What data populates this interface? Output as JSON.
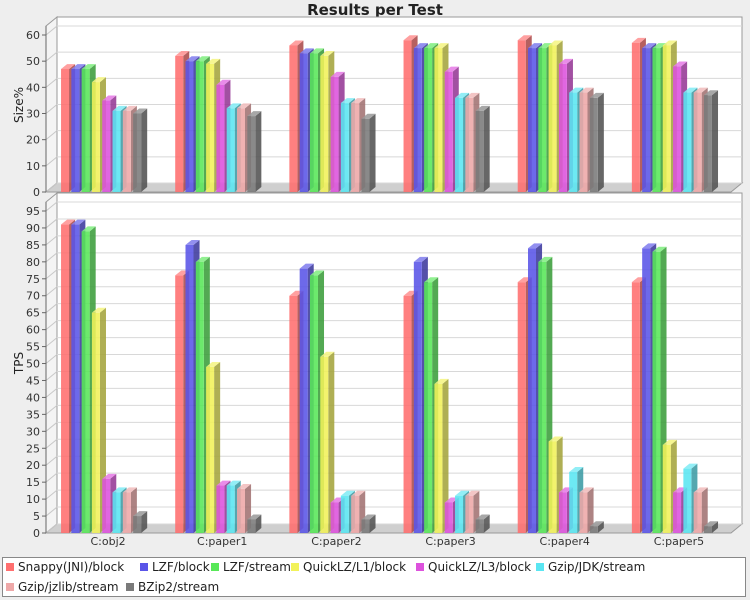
{
  "chart_data": [
    {
      "type": "bar",
      "title": "Results per Test",
      "ylabel": "Size%",
      "ylim": [
        0,
        60
      ],
      "yticks": [
        0,
        10,
        20,
        30,
        40,
        50,
        60
      ],
      "categories": [
        "C:obj2",
        "C:paper1",
        "C:paper2",
        "C:paper3",
        "C:paper4",
        "C:paper5"
      ],
      "series": [
        {
          "name": "Snappy(JNI)/block",
          "color": "#ff6f6f",
          "values": [
            47,
            52,
            56,
            58,
            58,
            57
          ]
        },
        {
          "name": "LZF/block",
          "color": "#5a55e8",
          "values": [
            47,
            50,
            53,
            55,
            55,
            55
          ]
        },
        {
          "name": "LZF/stream",
          "color": "#58e858",
          "values": [
            47,
            50,
            53,
            55,
            55,
            55
          ]
        },
        {
          "name": "QuickLZ/L1/block",
          "color": "#f2f25a",
          "values": [
            42,
            49,
            52,
            55,
            56,
            56
          ]
        },
        {
          "name": "QuickLZ/L3/block",
          "color": "#dd52dd",
          "values": [
            35,
            41,
            44,
            46,
            49,
            48
          ]
        },
        {
          "name": "Gzip/JDK/stream",
          "color": "#5ae6f2",
          "values": [
            31,
            32,
            34,
            36,
            38,
            38
          ]
        },
        {
          "name": "Gzip/jzlib/stream",
          "color": "#eea8a8",
          "values": [
            31,
            32,
            34,
            36,
            38,
            38
          ]
        },
        {
          "name": "BZip2/stream",
          "color": "#7a7a7a",
          "values": [
            30,
            29,
            28,
            31,
            36,
            37
          ]
        }
      ],
      "grid": true,
      "legend": "bottom"
    },
    {
      "type": "bar",
      "ylabel": "TPS",
      "ylim": [
        0,
        95
      ],
      "yticks": [
        0,
        5,
        10,
        15,
        20,
        25,
        30,
        35,
        40,
        45,
        50,
        55,
        60,
        65,
        70,
        75,
        80,
        85,
        90,
        95
      ],
      "categories": [
        "C:obj2",
        "C:paper1",
        "C:paper2",
        "C:paper3",
        "C:paper4",
        "C:paper5"
      ],
      "series": [
        {
          "name": "Snappy(JNI)/block",
          "color": "#ff6f6f",
          "values": [
            91,
            76,
            70,
            70,
            74,
            74
          ]
        },
        {
          "name": "LZF/block",
          "color": "#5a55e8",
          "values": [
            91,
            85,
            78,
            80,
            84,
            84
          ]
        },
        {
          "name": "LZF/stream",
          "color": "#58e858",
          "values": [
            89,
            80,
            76,
            74,
            80,
            83
          ]
        },
        {
          "name": "QuickLZ/L1/block",
          "color": "#f2f25a",
          "values": [
            65,
            49,
            52,
            44,
            27,
            26
          ]
        },
        {
          "name": "QuickLZ/L3/block",
          "color": "#dd52dd",
          "values": [
            16,
            14,
            9,
            9,
            12,
            12
          ]
        },
        {
          "name": "Gzip/JDK/stream",
          "color": "#5ae6f2",
          "values": [
            12,
            14,
            11,
            11,
            18,
            19
          ]
        },
        {
          "name": "Gzip/jzlib/stream",
          "color": "#eea8a8",
          "values": [
            12,
            13,
            11,
            11,
            12,
            12
          ]
        },
        {
          "name": "BZip2/stream",
          "color": "#7a7a7a",
          "values": [
            5,
            4,
            4,
            4,
            2,
            2
          ]
        }
      ],
      "grid": true,
      "legend": "bottom"
    }
  ]
}
